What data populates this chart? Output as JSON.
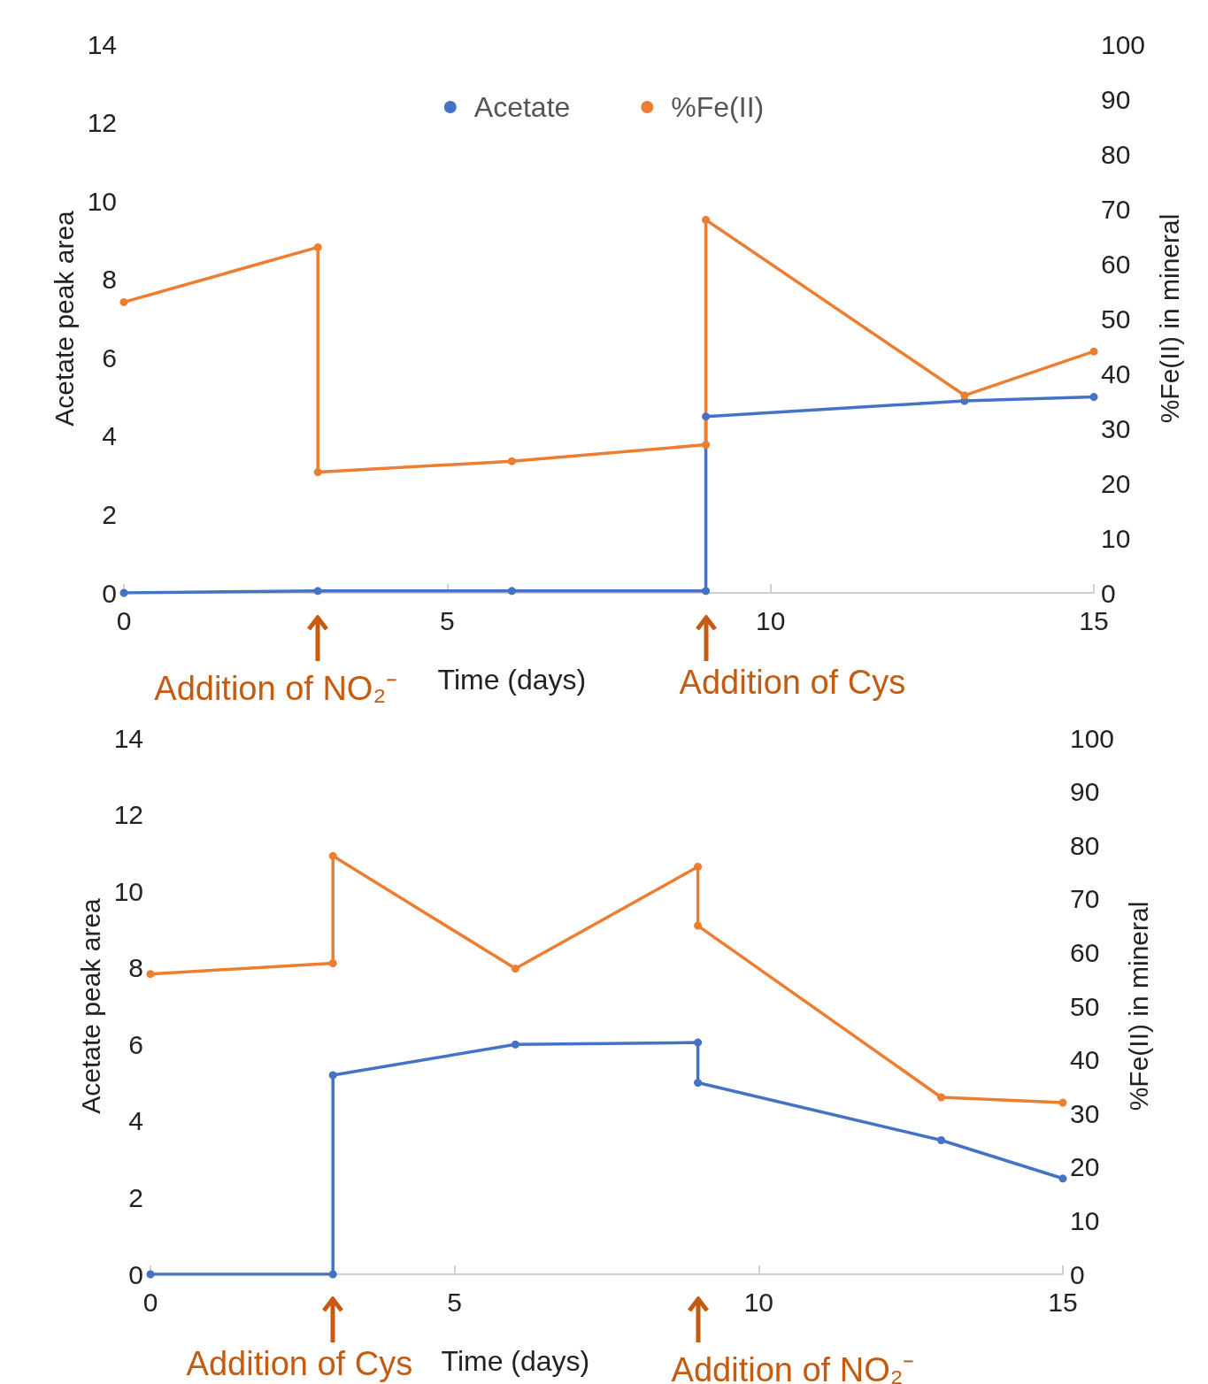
{
  "chart_data": [
    {
      "type": "line",
      "xlabel": "Time (days)",
      "ylabel": "Acetate peak area",
      "y2label": "%Fe(II) in mineral",
      "xlim": [
        0,
        15
      ],
      "xticks": [
        0,
        5,
        10,
        15
      ],
      "ylim": [
        0,
        14
      ],
      "yticks": [
        0,
        2,
        4,
        6,
        8,
        10,
        12,
        14
      ],
      "y2lim": [
        0,
        100
      ],
      "y2ticks": [
        0,
        10,
        20,
        30,
        40,
        50,
        60,
        70,
        80,
        90,
        100
      ],
      "grid": false,
      "legend": "top",
      "marker": "circle",
      "line_style": "solid",
      "ref_lines": [
        {
          "axis": "x",
          "value": 3,
          "label": "Addition of NO₂⁻",
          "color": "#c55a11"
        },
        {
          "axis": "x",
          "value": 9,
          "label": "Addition of Cys",
          "color": "#c55a11"
        }
      ],
      "series": [
        {
          "name": "Acetate",
          "color": "#4472c4",
          "x": [
            0,
            3,
            6,
            9,
            9,
            13,
            15
          ],
          "values": [
            0,
            0.05,
            0.05,
            0.05,
            4.5,
            4.9,
            5.0
          ]
        },
        {
          "name": "%Fe(II)",
          "color": "#ed7d31",
          "axis": "y2",
          "x": [
            0,
            3,
            3,
            6,
            9,
            9,
            13,
            15
          ],
          "values": [
            53,
            63,
            22,
            24,
            27,
            68,
            36,
            44
          ]
        }
      ]
    },
    {
      "type": "line",
      "xlabel": "Time (days)",
      "ylabel": "Acetate peak area",
      "y2label": "%Fe(II) in mineral",
      "xlim": [
        0,
        15
      ],
      "xticks": [
        0,
        5,
        10,
        15
      ],
      "ylim": [
        0,
        14
      ],
      "yticks": [
        0,
        2,
        4,
        6,
        8,
        10,
        12,
        14
      ],
      "y2lim": [
        0,
        100
      ],
      "y2ticks": [
        0,
        10,
        20,
        30,
        40,
        50,
        60,
        70,
        80,
        90,
        100
      ],
      "grid": false,
      "legend": false,
      "marker": "circle",
      "line_style": "solid",
      "ref_lines": [
        {
          "axis": "x",
          "value": 3,
          "label": "Addition of Cys",
          "color": "#c55a11"
        },
        {
          "axis": "x",
          "value": 9,
          "label": "Addition of NO₂⁻",
          "color": "#c55a11"
        }
      ],
      "series": [
        {
          "color": "#4472c4",
          "x": [
            0,
            3,
            3,
            6,
            9,
            9,
            13,
            15
          ],
          "values": [
            0,
            0,
            5.2,
            6.0,
            6.05,
            5.0,
            3.5,
            2.5
          ]
        },
        {
          "color": "#ed7d31",
          "axis": "y2",
          "x": [
            0,
            3,
            3,
            6,
            9,
            9,
            13,
            15
          ],
          "values": [
            56,
            58,
            78,
            57,
            76,
            65,
            33,
            32
          ]
        }
      ]
    }
  ]
}
